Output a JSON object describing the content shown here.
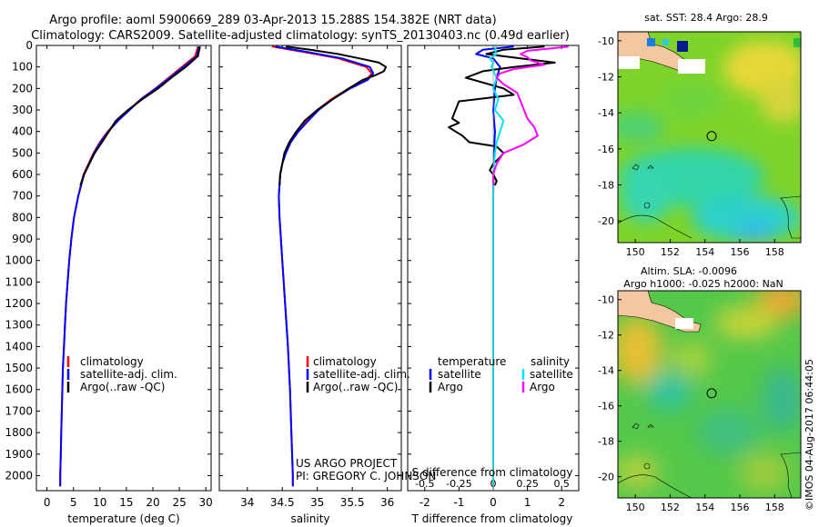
{
  "header": {
    "line1": "Argo profile: aoml 5900669_289 03-Apr-2013 15.288S 154.382E (NRT data)",
    "line2": "Climatology: CARS2009. Satellite-adjusted climatology: synTS_20130403.nc (0.49d earlier)"
  },
  "colors": {
    "climatology": "#ff0000",
    "satellite": "#0000ff",
    "argo": "#000000",
    "salinity_sat": "#00e5ee",
    "salinity_argo": "#ff00ff"
  },
  "chart_data": [
    {
      "type": "line",
      "id": "temperature",
      "xlabel": "temperature (deg C)",
      "ylabel": "",
      "xlim": [
        -2,
        31
      ],
      "ylim": [
        2070,
        0
      ],
      "xticks": [
        0,
        5,
        10,
        15,
        20,
        25,
        30
      ],
      "yticks": [
        0,
        100,
        200,
        300,
        400,
        500,
        600,
        700,
        800,
        900,
        1000,
        1100,
        1200,
        1300,
        1400,
        1500,
        1600,
        1700,
        1800,
        1900,
        2000
      ],
      "legend": [
        "climatology",
        "satellite-adj. clim.",
        "Argo(..raw -QC)"
      ],
      "series": [
        {
          "name": "climatology",
          "color": "#ff0000",
          "depth": [
            5,
            50,
            100,
            150,
            200,
            250,
            300,
            350,
            400,
            450,
            500,
            600,
            700,
            800,
            900,
            1000,
            1100,
            1200,
            1300,
            1400,
            1500,
            1600,
            1700,
            1800,
            1900,
            2000,
            2050
          ],
          "values": [
            28.5,
            28.0,
            25.5,
            23.0,
            20.5,
            17.7,
            15.5,
            13.3,
            11.5,
            10.0,
            8.8,
            6.9,
            5.9,
            5.1,
            4.6,
            4.2,
            3.9,
            3.6,
            3.4,
            3.2,
            3.0,
            2.9,
            2.8,
            2.7,
            2.6,
            2.5,
            2.5
          ]
        },
        {
          "name": "satellite-adj. clim.",
          "color": "#0000ff",
          "depth": [
            5,
            50,
            100,
            150,
            200,
            250,
            300,
            350,
            400,
            450,
            500,
            600,
            700,
            800,
            900,
            1000,
            1100,
            1200,
            1300,
            1400,
            1500,
            1600,
            1700,
            1800,
            1900,
            2000,
            2050
          ],
          "values": [
            28.7,
            28.3,
            25.8,
            23.2,
            20.6,
            17.8,
            15.6,
            13.4,
            11.6,
            10.1,
            8.9,
            7.0,
            5.9,
            5.1,
            4.6,
            4.2,
            3.9,
            3.6,
            3.4,
            3.2,
            3.0,
            2.9,
            2.8,
            2.7,
            2.6,
            2.5,
            2.5
          ]
        },
        {
          "name": "Argo(..raw -QC)",
          "color": "#000000",
          "depth": [
            5,
            50,
            100,
            150,
            200,
            250,
            300,
            350,
            400,
            450,
            500,
            550,
            600,
            650
          ],
          "values": [
            28.9,
            28.5,
            26.2,
            23.5,
            21.0,
            18.0,
            15.3,
            13.0,
            11.7,
            10.4,
            9.0,
            8.0,
            7.0,
            6.3
          ]
        }
      ]
    },
    {
      "type": "line",
      "id": "salinity",
      "xlabel": "salinity",
      "xlim": [
        33.6,
        36.2
      ],
      "ylim": [
        2070,
        0
      ],
      "xticks": [
        34,
        34.5,
        35,
        35.5,
        36
      ],
      "legend": [
        "climatology",
        "satellite-adj. clim.",
        "Argo(..raw -QC)"
      ],
      "annotation": [
        "US ARGO PROJECT",
        "PI: GREGORY C. JOHNSON"
      ],
      "series": [
        {
          "name": "climatology",
          "color": "#ff0000",
          "depth": [
            5,
            30,
            60,
            100,
            130,
            160,
            200,
            250,
            300,
            350,
            400,
            450,
            500,
            550,
            600,
            700,
            800,
            900,
            1000,
            1200,
            1400,
            1600,
            1800,
            2000,
            2050
          ],
          "values": [
            34.35,
            34.8,
            35.3,
            35.7,
            35.78,
            35.7,
            35.45,
            35.2,
            35.0,
            34.85,
            34.72,
            34.62,
            34.55,
            34.5,
            34.47,
            34.45,
            34.46,
            34.48,
            34.5,
            34.54,
            34.58,
            34.61,
            34.63,
            34.65,
            34.65
          ]
        },
        {
          "name": "satellite-adj. clim.",
          "color": "#0000ff",
          "depth": [
            5,
            30,
            60,
            100,
            130,
            160,
            200,
            250,
            300,
            350,
            400,
            450,
            500,
            550,
            600,
            700,
            800,
            900,
            1000,
            1200,
            1400,
            1600,
            1800,
            2000,
            2050
          ],
          "values": [
            34.4,
            34.85,
            35.35,
            35.75,
            35.8,
            35.72,
            35.47,
            35.22,
            35.02,
            34.87,
            34.73,
            34.62,
            34.55,
            34.5,
            34.47,
            34.45,
            34.46,
            34.48,
            34.5,
            34.54,
            34.58,
            34.61,
            34.63,
            34.65,
            34.65
          ]
        },
        {
          "name": "Argo(..raw -QC)",
          "color": "#000000",
          "depth": [
            5,
            20,
            40,
            60,
            80,
            100,
            120,
            140,
            160,
            200,
            250,
            300,
            350,
            400,
            450,
            500,
            550,
            600,
            650
          ],
          "values": [
            34.55,
            34.9,
            35.3,
            35.6,
            35.88,
            35.98,
            35.95,
            35.82,
            35.65,
            35.45,
            35.22,
            35.0,
            34.82,
            34.7,
            34.6,
            34.53,
            34.5,
            34.47,
            34.46
          ]
        }
      ]
    },
    {
      "type": "line",
      "id": "differences",
      "xlabel": "T difference from climatology",
      "xlabel2": "S difference from climatology",
      "xlim": [
        -2.5,
        2.5
      ],
      "ylim": [
        2070,
        0
      ],
      "xticks": [
        -2,
        -1,
        0,
        1,
        2
      ],
      "xticklabels": [
        "-2",
        "-1",
        "0",
        "1",
        "2"
      ],
      "x2ticks": [
        -2,
        -1,
        0,
        1,
        2
      ],
      "x2ticklabels": [
        "-0.5",
        "-0.25",
        "0",
        "0.25",
        "0.5"
      ],
      "legend_temperature_title": "temperature",
      "legend_salinity_title": "salinity",
      "legend": [
        "satellite",
        "Argo",
        "satellite",
        "Argo"
      ],
      "series": [
        {
          "name": "temperature satellite",
          "color": "#0000ff",
          "depth": [
            5,
            20,
            40,
            60,
            100,
            150,
            200,
            300,
            400,
            500,
            700,
            1000,
            1500,
            2000,
            2050
          ],
          "values": [
            0.6,
            -0.3,
            -0.5,
            0.0,
            0.2,
            0.1,
            0.05,
            0.0,
            0.05,
            0.02,
            0.0,
            0.0,
            0.0,
            0.0,
            0.0
          ]
        },
        {
          "name": "temperature Argo",
          "color": "#000000",
          "depth": [
            5,
            20,
            40,
            60,
            80,
            100,
            120,
            150,
            200,
            230,
            260,
            300,
            340,
            360,
            380,
            400,
            420,
            450,
            470,
            500,
            520,
            550,
            580,
            600,
            630,
            650
          ],
          "values": [
            1.5,
            0.3,
            -0.2,
            0.8,
            1.8,
            0.6,
            -0.3,
            -0.8,
            0.3,
            0.6,
            -1.0,
            -1.1,
            -1.2,
            -1.0,
            -1.3,
            -1.1,
            -0.9,
            -0.7,
            0.1,
            0.3,
            0.2,
            0.0,
            -0.1,
            0.0,
            0.1,
            0.05
          ]
        },
        {
          "name": "salinity satellite",
          "color": "#00e5ee",
          "depth": [
            5,
            20,
            40,
            60,
            80,
            100,
            150,
            200,
            250,
            300,
            350,
            400,
            450,
            500,
            600,
            800,
            1000,
            1500,
            2000,
            2050
          ],
          "values": [
            0.1,
            0.05,
            0.1,
            -0.1,
            0.0,
            -0.05,
            0.1,
            0.0,
            0.15,
            0.05,
            0.3,
            0.2,
            0.1,
            0.05,
            0.0,
            0.0,
            0.0,
            0.0,
            0.0,
            0.0
          ]
        },
        {
          "name": "salinity Argo",
          "color": "#ff00ff",
          "depth": [
            5,
            15,
            25,
            40,
            55,
            70,
            90,
            110,
            130,
            150,
            180,
            220,
            260,
            300,
            340,
            380,
            420,
            460,
            500,
            550,
            600,
            650
          ],
          "values": [
            2.2,
            1.6,
            1.0,
            0.8,
            1.0,
            1.1,
            1.5,
            0.6,
            0.2,
            0.1,
            0.3,
            0.7,
            0.8,
            0.9,
            1.0,
            1.2,
            1.3,
            0.9,
            0.3,
            0.1,
            0.0,
            0.0
          ]
        }
      ]
    },
    {
      "type": "heatmap",
      "id": "sst_map",
      "title": "sat. SST: 28.4  Argo: 28.9",
      "xticks": [
        150,
        152,
        154,
        156,
        158
      ],
      "yticks": [
        -10,
        -12,
        -14,
        -16,
        -18,
        -20
      ],
      "xlim": [
        149,
        159.5
      ],
      "ylim": [
        -21.2,
        -9.5
      ],
      "argo_position": {
        "lon": 154.382,
        "lat": -15.288
      }
    },
    {
      "type": "heatmap",
      "id": "sla_map",
      "title": "Altim. SLA: -0.0096",
      "subtitle": "Argo h1000: -0.025 h2000: NaN",
      "xticks": [
        150,
        152,
        154,
        156,
        158
      ],
      "yticks": [
        -10,
        -12,
        -14,
        -16,
        -18,
        -20
      ],
      "xlim": [
        149,
        159.5
      ],
      "ylim": [
        -21.2,
        -9.5
      ],
      "argo_position": {
        "lon": 154.382,
        "lat": -15.288
      }
    }
  ],
  "footer": {
    "credit": "©IMOS 04-Aug-2017 06:44:05"
  }
}
